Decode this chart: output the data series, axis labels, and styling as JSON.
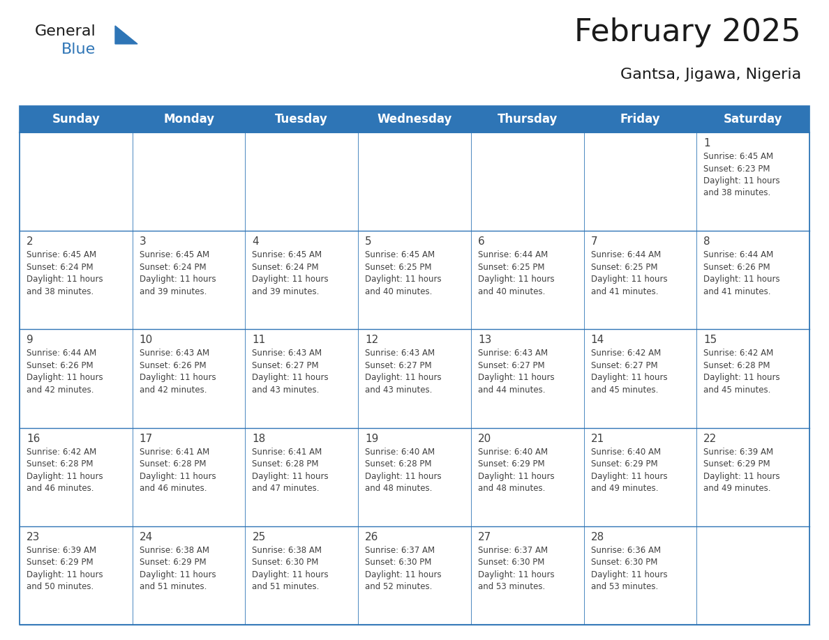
{
  "title": "February 2025",
  "subtitle": "Gantsa, Jigawa, Nigeria",
  "header_bg_color": "#2E75B6",
  "header_text_color": "#FFFFFF",
  "day_headers": [
    "Sunday",
    "Monday",
    "Tuesday",
    "Wednesday",
    "Thursday",
    "Friday",
    "Saturday"
  ],
  "grid_line_color": "#2E75B6",
  "row_separator_color": "#4472A8",
  "cell_bg_color": "#FFFFFF",
  "day_number_color": "#404040",
  "info_text_color": "#404040",
  "background_color": "#FFFFFF",
  "days": [
    {
      "day": 1,
      "col": 6,
      "row": 0,
      "sunrise": "6:45 AM",
      "sunset": "6:23 PM",
      "daylight_hours": 11,
      "daylight_minutes": 38
    },
    {
      "day": 2,
      "col": 0,
      "row": 1,
      "sunrise": "6:45 AM",
      "sunset": "6:24 PM",
      "daylight_hours": 11,
      "daylight_minutes": 38
    },
    {
      "day": 3,
      "col": 1,
      "row": 1,
      "sunrise": "6:45 AM",
      "sunset": "6:24 PM",
      "daylight_hours": 11,
      "daylight_minutes": 39
    },
    {
      "day": 4,
      "col": 2,
      "row": 1,
      "sunrise": "6:45 AM",
      "sunset": "6:24 PM",
      "daylight_hours": 11,
      "daylight_minutes": 39
    },
    {
      "day": 5,
      "col": 3,
      "row": 1,
      "sunrise": "6:45 AM",
      "sunset": "6:25 PM",
      "daylight_hours": 11,
      "daylight_minutes": 40
    },
    {
      "day": 6,
      "col": 4,
      "row": 1,
      "sunrise": "6:44 AM",
      "sunset": "6:25 PM",
      "daylight_hours": 11,
      "daylight_minutes": 40
    },
    {
      "day": 7,
      "col": 5,
      "row": 1,
      "sunrise": "6:44 AM",
      "sunset": "6:25 PM",
      "daylight_hours": 11,
      "daylight_minutes": 41
    },
    {
      "day": 8,
      "col": 6,
      "row": 1,
      "sunrise": "6:44 AM",
      "sunset": "6:26 PM",
      "daylight_hours": 11,
      "daylight_minutes": 41
    },
    {
      "day": 9,
      "col": 0,
      "row": 2,
      "sunrise": "6:44 AM",
      "sunset": "6:26 PM",
      "daylight_hours": 11,
      "daylight_minutes": 42
    },
    {
      "day": 10,
      "col": 1,
      "row": 2,
      "sunrise": "6:43 AM",
      "sunset": "6:26 PM",
      "daylight_hours": 11,
      "daylight_minutes": 42
    },
    {
      "day": 11,
      "col": 2,
      "row": 2,
      "sunrise": "6:43 AM",
      "sunset": "6:27 PM",
      "daylight_hours": 11,
      "daylight_minutes": 43
    },
    {
      "day": 12,
      "col": 3,
      "row": 2,
      "sunrise": "6:43 AM",
      "sunset": "6:27 PM",
      "daylight_hours": 11,
      "daylight_minutes": 43
    },
    {
      "day": 13,
      "col": 4,
      "row": 2,
      "sunrise": "6:43 AM",
      "sunset": "6:27 PM",
      "daylight_hours": 11,
      "daylight_minutes": 44
    },
    {
      "day": 14,
      "col": 5,
      "row": 2,
      "sunrise": "6:42 AM",
      "sunset": "6:27 PM",
      "daylight_hours": 11,
      "daylight_minutes": 45
    },
    {
      "day": 15,
      "col": 6,
      "row": 2,
      "sunrise": "6:42 AM",
      "sunset": "6:28 PM",
      "daylight_hours": 11,
      "daylight_minutes": 45
    },
    {
      "day": 16,
      "col": 0,
      "row": 3,
      "sunrise": "6:42 AM",
      "sunset": "6:28 PM",
      "daylight_hours": 11,
      "daylight_minutes": 46
    },
    {
      "day": 17,
      "col": 1,
      "row": 3,
      "sunrise": "6:41 AM",
      "sunset": "6:28 PM",
      "daylight_hours": 11,
      "daylight_minutes": 46
    },
    {
      "day": 18,
      "col": 2,
      "row": 3,
      "sunrise": "6:41 AM",
      "sunset": "6:28 PM",
      "daylight_hours": 11,
      "daylight_minutes": 47
    },
    {
      "day": 19,
      "col": 3,
      "row": 3,
      "sunrise": "6:40 AM",
      "sunset": "6:28 PM",
      "daylight_hours": 11,
      "daylight_minutes": 48
    },
    {
      "day": 20,
      "col": 4,
      "row": 3,
      "sunrise": "6:40 AM",
      "sunset": "6:29 PM",
      "daylight_hours": 11,
      "daylight_minutes": 48
    },
    {
      "day": 21,
      "col": 5,
      "row": 3,
      "sunrise": "6:40 AM",
      "sunset": "6:29 PM",
      "daylight_hours": 11,
      "daylight_minutes": 49
    },
    {
      "day": 22,
      "col": 6,
      "row": 3,
      "sunrise": "6:39 AM",
      "sunset": "6:29 PM",
      "daylight_hours": 11,
      "daylight_minutes": 49
    },
    {
      "day": 23,
      "col": 0,
      "row": 4,
      "sunrise": "6:39 AM",
      "sunset": "6:29 PM",
      "daylight_hours": 11,
      "daylight_minutes": 50
    },
    {
      "day": 24,
      "col": 1,
      "row": 4,
      "sunrise": "6:38 AM",
      "sunset": "6:29 PM",
      "daylight_hours": 11,
      "daylight_minutes": 51
    },
    {
      "day": 25,
      "col": 2,
      "row": 4,
      "sunrise": "6:38 AM",
      "sunset": "6:30 PM",
      "daylight_hours": 11,
      "daylight_minutes": 51
    },
    {
      "day": 26,
      "col": 3,
      "row": 4,
      "sunrise": "6:37 AM",
      "sunset": "6:30 PM",
      "daylight_hours": 11,
      "daylight_minutes": 52
    },
    {
      "day": 27,
      "col": 4,
      "row": 4,
      "sunrise": "6:37 AM",
      "sunset": "6:30 PM",
      "daylight_hours": 11,
      "daylight_minutes": 53
    },
    {
      "day": 28,
      "col": 5,
      "row": 4,
      "sunrise": "6:36 AM",
      "sunset": "6:30 PM",
      "daylight_hours": 11,
      "daylight_minutes": 53
    }
  ],
  "num_rows": 5,
  "num_cols": 7,
  "logo_general_color": "#1a1a1a",
  "logo_blue_color": "#2E75B6",
  "title_fontsize": 32,
  "subtitle_fontsize": 16,
  "header_fontsize": 12,
  "day_num_fontsize": 11,
  "info_fontsize": 8.5
}
